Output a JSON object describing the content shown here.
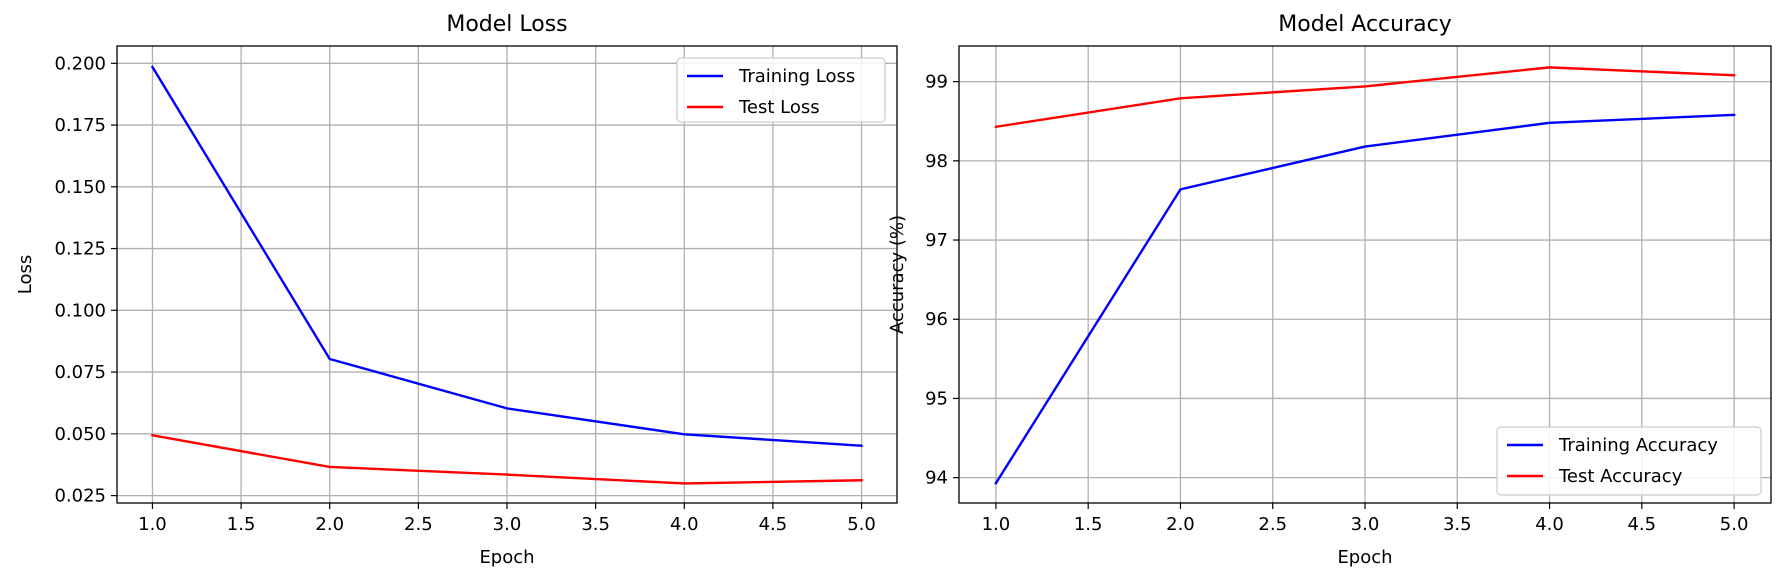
{
  "chart_data": [
    {
      "type": "line",
      "title": "Model Loss",
      "xlabel": "Epoch",
      "ylabel": "Loss",
      "x": [
        1,
        2,
        3,
        4,
        5
      ],
      "xlim": [
        0.8,
        5.2
      ],
      "ylim": [
        0.022,
        0.207
      ],
      "xticks": [
        "1.0",
        "1.5",
        "2.0",
        "2.5",
        "3.0",
        "3.5",
        "4.0",
        "4.5",
        "5.0"
      ],
      "yticks": [
        "0.025",
        "0.050",
        "0.075",
        "0.100",
        "0.125",
        "0.150",
        "0.175",
        "0.200"
      ],
      "grid": true,
      "legend_position": "top-right",
      "series": [
        {
          "name": "Training Loss",
          "color": "#0000ff",
          "values": [
            0.1985,
            0.0803,
            0.0603,
            0.0498,
            0.0452
          ]
        },
        {
          "name": "Test Loss",
          "color": "#ff0000",
          "values": [
            0.0494,
            0.0366,
            0.0335,
            0.0299,
            0.0312
          ]
        }
      ]
    },
    {
      "type": "line",
      "title": "Model Accuracy",
      "xlabel": "Epoch",
      "ylabel": "Accuracy (%)",
      "x": [
        1,
        2,
        3,
        4,
        5
      ],
      "xlim": [
        0.8,
        5.2
      ],
      "ylim": [
        93.68,
        99.45
      ],
      "xticks": [
        "1.0",
        "1.5",
        "2.0",
        "2.5",
        "3.0",
        "3.5",
        "4.0",
        "4.5",
        "5.0"
      ],
      "yticks": [
        "94",
        "95",
        "96",
        "97",
        "98",
        "99"
      ],
      "grid": true,
      "legend_position": "bottom-right",
      "series": [
        {
          "name": "Training Accuracy",
          "color": "#0000ff",
          "values": [
            93.93,
            97.64,
            98.18,
            98.48,
            98.58
          ]
        },
        {
          "name": "Test Accuracy",
          "color": "#ff0000",
          "values": [
            98.43,
            98.79,
            98.94,
            99.18,
            99.08
          ]
        }
      ]
    }
  ]
}
